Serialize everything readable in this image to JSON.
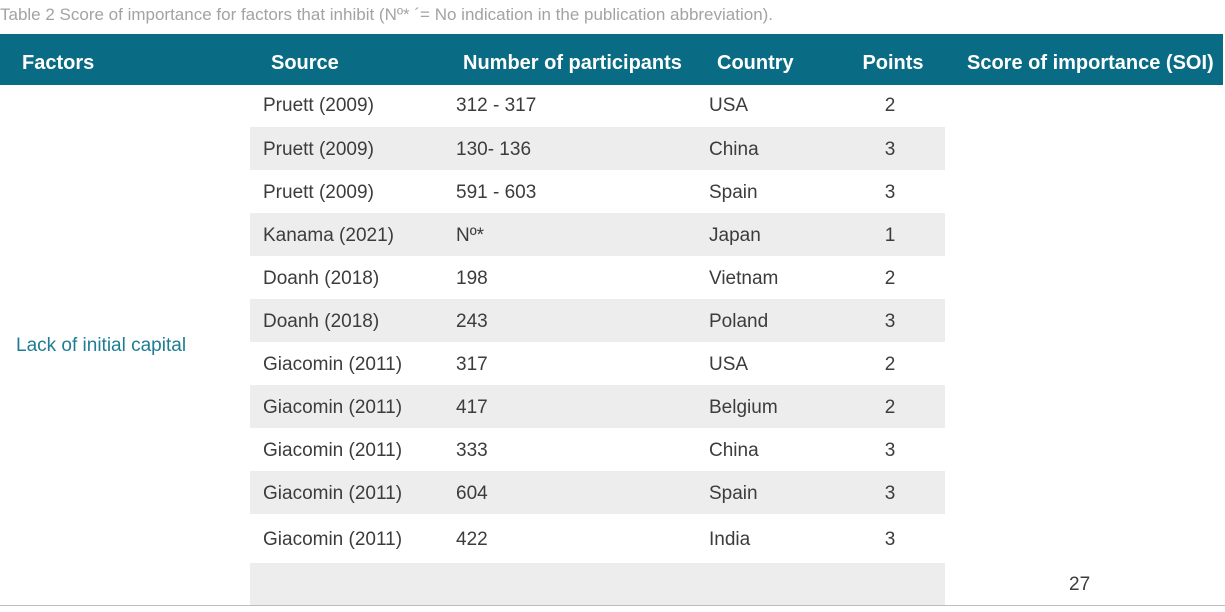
{
  "caption": "Table 2 Score of importance for factors that inhibit (Nº* ´= No indication in the publication abbreviation).",
  "columns": {
    "factors": "Factors",
    "source": "Source",
    "participants": "Number of participants",
    "country": "Country",
    "points": "Points",
    "soi": "Score of importance (SOI)"
  },
  "factor": "Lack of initial capital",
  "rows": [
    {
      "source": "Pruett (2009)",
      "participants": "312 - 317",
      "country": "USA",
      "points": "2"
    },
    {
      "source": "Pruett (2009)",
      "participants": "130- 136",
      "country": "China",
      "points": "3"
    },
    {
      "source": "Pruett (2009)",
      "participants": "591 - 603",
      "country": "Spain",
      "points": "3"
    },
    {
      "source": "Kanama (2021)",
      "participants": "Nº*",
      "country": "Japan",
      "points": "1"
    },
    {
      "source": "Doanh (2018)",
      "participants": "198",
      "country": "Vietnam",
      "points": "2"
    },
    {
      "source": "Doanh (2018)",
      "participants": "243",
      "country": "Poland",
      "points": "3"
    },
    {
      "source": "Giacomin (2011)",
      "participants": "317",
      "country": "USA",
      "points": "2"
    },
    {
      "source": "Giacomin (2011)",
      "participants": "417",
      "country": "Belgium",
      "points": "2"
    },
    {
      "source": "Giacomin (2011)",
      "participants": "333",
      "country": "China",
      "points": "3"
    },
    {
      "source": "Giacomin (2011)",
      "participants": "604",
      "country": "Spain",
      "points": "3"
    },
    {
      "source": "Giacomin (2011)",
      "participants": "422",
      "country": "India",
      "points": "3"
    }
  ],
  "soi_value": "27",
  "colors": {
    "header": "#0a6b85",
    "factor_text": "#1e7d93",
    "stripe": "#ededed",
    "caption": "#a3a3a3"
  }
}
